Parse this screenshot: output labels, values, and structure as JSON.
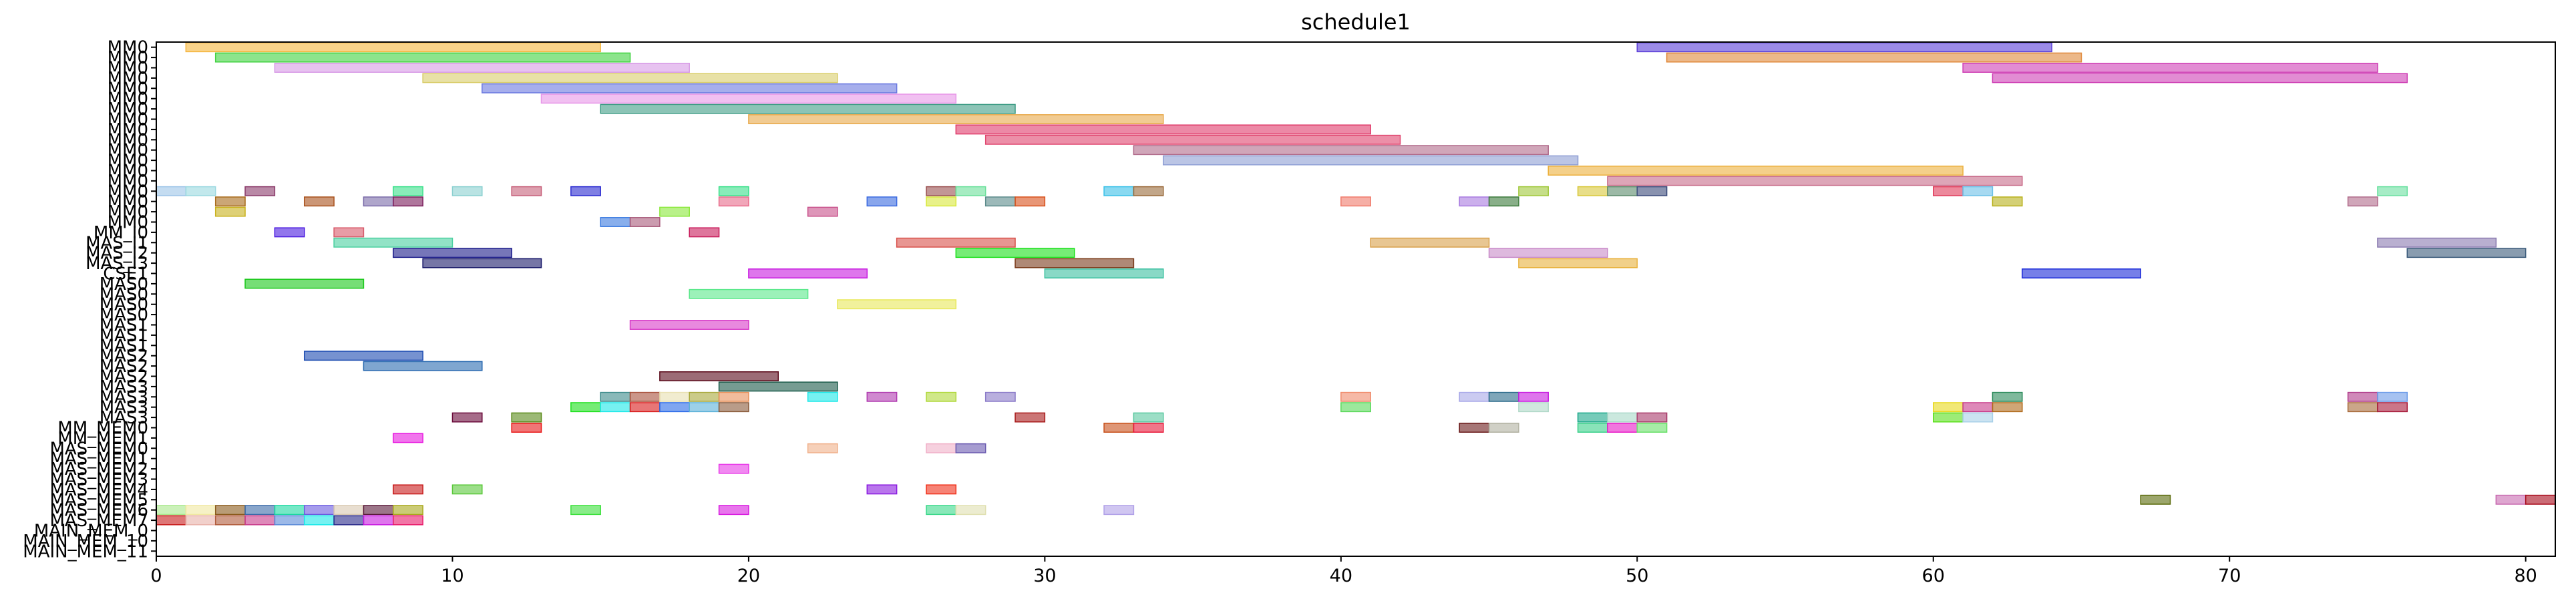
{
  "chart_data": {
    "type": "gantt",
    "title": "schedule1",
    "xlabel": "",
    "ylabel": "",
    "xlim": [
      0,
      81
    ],
    "xticks": [
      0,
      10,
      20,
      30,
      40,
      50,
      60,
      70,
      80
    ],
    "grid": false,
    "legend": "none",
    "rows": [
      "MM0",
      "MM0",
      "MM0",
      "MM0",
      "MM0",
      "MM0",
      "MM0",
      "MM0",
      "MM0",
      "MM0",
      "MM0",
      "MM0",
      "MM0",
      "MM0",
      "MM0",
      "MM0",
      "MM0",
      "MM0",
      "MM_I0",
      "MAS_I1",
      "MAS_I2",
      "MAS_I3",
      "CSE1",
      "MAS0",
      "MAS0",
      "MAS0",
      "MAS0",
      "MAS1",
      "MAS1",
      "MAS1",
      "MAS2",
      "MAS2",
      "MAS2",
      "MAS3",
      "MAS3",
      "MAS3",
      "MAS3",
      "MM_MEM0",
      "MM_MEM1",
      "MAS_MEM0",
      "MAS_MEM1",
      "MAS_MEM2",
      "MAS_MEM3",
      "MAS_MEM4",
      "MAS_MEM5",
      "MAS_MEM6",
      "MAS_MEM7",
      "MAIN_MEM_0",
      "MAIN_MEM_10",
      "MAIN_MEM_11"
    ],
    "tasks": [
      {
        "row": 0,
        "start": 1,
        "end": 15,
        "color": "#f5b53c"
      },
      {
        "row": 0,
        "start": 50,
        "end": 64,
        "color": "#5a3ed8"
      },
      {
        "row": 1,
        "start": 2,
        "end": 16,
        "color": "#3fd23f"
      },
      {
        "row": 1,
        "start": 51,
        "end": 65,
        "color": "#e0883a"
      },
      {
        "row": 2,
        "start": 4,
        "end": 18,
        "color": "#d79ae6"
      },
      {
        "row": 2,
        "start": 61,
        "end": 75,
        "color": "#cf3fb5"
      },
      {
        "row": 3,
        "start": 9,
        "end": 23,
        "color": "#d9cd6a"
      },
      {
        "row": 3,
        "start": 62,
        "end": 76,
        "color": "#cf3fb5"
      },
      {
        "row": 4,
        "start": 11,
        "end": 25,
        "color": "#6a78e0"
      },
      {
        "row": 5,
        "start": 13,
        "end": 27,
        "color": "#e796e8"
      },
      {
        "row": 6,
        "start": 15,
        "end": 29,
        "color": "#3f9c85"
      },
      {
        "row": 7,
        "start": 20,
        "end": 34,
        "color": "#e8a84a"
      },
      {
        "row": 8,
        "start": 27,
        "end": 41,
        "color": "#e03a6a"
      },
      {
        "row": 9,
        "start": 28,
        "end": 42,
        "color": "#e0456e"
      },
      {
        "row": 10,
        "start": 33,
        "end": 47,
        "color": "#b06a8a"
      },
      {
        "row": 11,
        "start": 34,
        "end": 48,
        "color": "#8e9ed4"
      },
      {
        "row": 12,
        "start": 47,
        "end": 61,
        "color": "#ecb03c"
      },
      {
        "row": 13,
        "start": 49,
        "end": 63,
        "color": "#c76a88"
      },
      {
        "row": 14,
        "start": 0,
        "end": 1,
        "color": "#9cc4e8"
      },
      {
        "row": 14,
        "start": 1,
        "end": 2,
        "color": "#9ad8e0"
      },
      {
        "row": 14,
        "start": 3,
        "end": 4,
        "color": "#8a3a6a"
      },
      {
        "row": 14,
        "start": 8,
        "end": 9,
        "color": "#3ae08a"
      },
      {
        "row": 14,
        "start": 10,
        "end": 11,
        "color": "#8ad0d0"
      },
      {
        "row": 14,
        "start": 12,
        "end": 13,
        "color": "#c7607a"
      },
      {
        "row": 14,
        "start": 14,
        "end": 15,
        "color": "#2a2ad0"
      },
      {
        "row": 14,
        "start": 19,
        "end": 20,
        "color": "#3ae08a"
      },
      {
        "row": 14,
        "start": 26,
        "end": 27,
        "color": "#9a5050"
      },
      {
        "row": 14,
        "start": 27,
        "end": 28,
        "color": "#6ae09a"
      },
      {
        "row": 14,
        "start": 32,
        "end": 33,
        "color": "#3ac0e8"
      },
      {
        "row": 14,
        "start": 33,
        "end": 34,
        "color": "#9a6a3a"
      },
      {
        "row": 14,
        "start": 46,
        "end": 47,
        "color": "#a0c83a"
      },
      {
        "row": 14,
        "start": 48,
        "end": 49,
        "color": "#d8c83a"
      },
      {
        "row": 14,
        "start": 49,
        "end": 50,
        "color": "#5a8a6a"
      },
      {
        "row": 14,
        "start": 50,
        "end": 51,
        "color": "#3a4a7a"
      },
      {
        "row": 14,
        "start": 60,
        "end": 61,
        "color": "#e03a5a"
      },
      {
        "row": 14,
        "start": 61,
        "end": 62,
        "color": "#6ac0e8"
      },
      {
        "row": 14,
        "start": 75,
        "end": 76,
        "color": "#6ae0a0"
      },
      {
        "row": 15,
        "start": 2,
        "end": 3,
        "color": "#a86a1a"
      },
      {
        "row": 15,
        "start": 5,
        "end": 6,
        "color": "#a8501a"
      },
      {
        "row": 15,
        "start": 7,
        "end": 8,
        "color": "#7a6aa8"
      },
      {
        "row": 15,
        "start": 8,
        "end": 9,
        "color": "#7a1a5a"
      },
      {
        "row": 15,
        "start": 19,
        "end": 20,
        "color": "#e86a8a"
      },
      {
        "row": 15,
        "start": 24,
        "end": 25,
        "color": "#3a6ae0"
      },
      {
        "row": 15,
        "start": 26,
        "end": 27,
        "color": "#d8e83a"
      },
      {
        "row": 15,
        "start": 28,
        "end": 29,
        "color": "#5a8a8a"
      },
      {
        "row": 15,
        "start": 29,
        "end": 30,
        "color": "#d8501a"
      },
      {
        "row": 15,
        "start": 40,
        "end": 41,
        "color": "#f07a6a"
      },
      {
        "row": 15,
        "start": 44,
        "end": 45,
        "color": "#a87ae0"
      },
      {
        "row": 15,
        "start": 45,
        "end": 46,
        "color": "#3a7a3a"
      },
      {
        "row": 15,
        "start": 62,
        "end": 63,
        "color": "#b8b01a"
      },
      {
        "row": 15,
        "start": 74,
        "end": 75,
        "color": "#b06a8a"
      },
      {
        "row": 16,
        "start": 2,
        "end": 3,
        "color": "#c8b01a"
      },
      {
        "row": 16,
        "start": 17,
        "end": 18,
        "color": "#8ae83a"
      },
      {
        "row": 16,
        "start": 22,
        "end": 23,
        "color": "#c8508a"
      },
      {
        "row": 17,
        "start": 15,
        "end": 16,
        "color": "#3a7ae0"
      },
      {
        "row": 18,
        "start": 4,
        "end": 5,
        "color": "#4a1ae0"
      },
      {
        "row": 18,
        "start": 6,
        "end": 7,
        "color": "#d85a6a"
      },
      {
        "row": 17,
        "start": 16,
        "end": 17,
        "color": "#a85a7a"
      },
      {
        "row": 18,
        "start": 18,
        "end": 19,
        "color": "#c81a5a"
      },
      {
        "row": 19,
        "start": 6,
        "end": 10,
        "color": "#4ad0a0"
      },
      {
        "row": 19,
        "start": 25,
        "end": 29,
        "color": "#d8504a"
      },
      {
        "row": 19,
        "start": 41,
        "end": 45,
        "color": "#d8a04a"
      },
      {
        "row": 19,
        "start": 75,
        "end": 79,
        "color": "#8a7ab0"
      },
      {
        "row": 20,
        "start": 8,
        "end": 12,
        "color": "#1a1a8a"
      },
      {
        "row": 20,
        "start": 27,
        "end": 31,
        "color": "#1ae01a"
      },
      {
        "row": 20,
        "start": 45,
        "end": 49,
        "color": "#c88ac8"
      },
      {
        "row": 20,
        "start": 76,
        "end": 80,
        "color": "#3a5a7a"
      },
      {
        "row": 21,
        "start": 9,
        "end": 13,
        "color": "#1a1a6a"
      },
      {
        "row": 21,
        "start": 29,
        "end": 33,
        "color": "#7a3a1a"
      },
      {
        "row": 21,
        "start": 46,
        "end": 50,
        "color": "#e8b03a"
      },
      {
        "row": 22,
        "start": 20,
        "end": 24,
        "color": "#c81ae0"
      },
      {
        "row": 22,
        "start": 30,
        "end": 34,
        "color": "#3ac0a0"
      },
      {
        "row": 22,
        "start": 63,
        "end": 67,
        "color": "#1a2ad8"
      },
      {
        "row": 23,
        "start": 3,
        "end": 7,
        "color": "#1ac81a"
      },
      {
        "row": 24,
        "start": 18,
        "end": 22,
        "color": "#5ae88a"
      },
      {
        "row": 25,
        "start": 23,
        "end": 27,
        "color": "#e8e85a"
      },
      {
        "row": 27,
        "start": 16,
        "end": 20,
        "color": "#d83ac8"
      },
      {
        "row": 30,
        "start": 5,
        "end": 9,
        "color": "#1a4ab0"
      },
      {
        "row": 31,
        "start": 7,
        "end": 11,
        "color": "#2a6ab0"
      },
      {
        "row": 32,
        "start": 17,
        "end": 21,
        "color": "#5a0a1a"
      },
      {
        "row": 33,
        "start": 19,
        "end": 23,
        "color": "#1a5a4a"
      },
      {
        "row": 34,
        "start": 15,
        "end": 16,
        "color": "#3a8a8a"
      },
      {
        "row": 34,
        "start": 16,
        "end": 17,
        "color": "#a8503a"
      },
      {
        "row": 34,
        "start": 17,
        "end": 18,
        "color": "#e8e0b0"
      },
      {
        "row": 34,
        "start": 18,
        "end": 19,
        "color": "#a8a83a"
      },
      {
        "row": 34,
        "start": 19,
        "end": 20,
        "color": "#e8905a"
      },
      {
        "row": 34,
        "start": 22,
        "end": 23,
        "color": "#1ae8e8"
      },
      {
        "row": 34,
        "start": 24,
        "end": 25,
        "color": "#b03ab0"
      },
      {
        "row": 34,
        "start": 26,
        "end": 27,
        "color": "#b0d83a"
      },
      {
        "row": 34,
        "start": 28,
        "end": 29,
        "color": "#8a7ac8"
      },
      {
        "row": 34,
        "start": 40,
        "end": 41,
        "color": "#f08a6a"
      },
      {
        "row": 34,
        "start": 44,
        "end": 45,
        "color": "#a8a8e8"
      },
      {
        "row": 34,
        "start": 45,
        "end": 46,
        "color": "#2a6a8a"
      },
      {
        "row": 34,
        "start": 46,
        "end": 47,
        "color": "#c81ae0"
      },
      {
        "row": 34,
        "start": 62,
        "end": 63,
        "color": "#2a8a5a"
      },
      {
        "row": 34,
        "start": 74,
        "end": 75,
        "color": "#b03a8a"
      },
      {
        "row": 34,
        "start": 75,
        "end": 76,
        "color": "#6a9ae8"
      },
      {
        "row": 35,
        "start": 14,
        "end": 15,
        "color": "#1ae01a"
      },
      {
        "row": 35,
        "start": 15,
        "end": 16,
        "color": "#1ae8e8"
      },
      {
        "row": 35,
        "start": 16,
        "end": 17,
        "color": "#d81a1a"
      },
      {
        "row": 35,
        "start": 17,
        "end": 18,
        "color": "#2a6ae8"
      },
      {
        "row": 35,
        "start": 18,
        "end": 19,
        "color": "#5ab0d8"
      },
      {
        "row": 35,
        "start": 19,
        "end": 20,
        "color": "#8a5a3a"
      },
      {
        "row": 35,
        "start": 40,
        "end": 41,
        "color": "#5ad85a"
      },
      {
        "row": 35,
        "start": 46,
        "end": 47,
        "color": "#b0d8c8"
      },
      {
        "row": 35,
        "start": 60,
        "end": 61,
        "color": "#e8d81a"
      },
      {
        "row": 35,
        "start": 61,
        "end": 62,
        "color": "#c83a8a"
      },
      {
        "row": 35,
        "start": 62,
        "end": 63,
        "color": "#b06a1a"
      },
      {
        "row": 35,
        "start": 74,
        "end": 75,
        "color": "#a86a3a"
      },
      {
        "row": 35,
        "start": 75,
        "end": 76,
        "color": "#a81a3a"
      },
      {
        "row": 36,
        "start": 10,
        "end": 11,
        "color": "#6a0a3a"
      },
      {
        "row": 36,
        "start": 12,
        "end": 13,
        "color": "#5a8a1a"
      },
      {
        "row": 36,
        "start": 29,
        "end": 30,
        "color": "#a81a1a"
      },
      {
        "row": 36,
        "start": 33,
        "end": 34,
        "color": "#5ac8a0"
      },
      {
        "row": 36,
        "start": 48,
        "end": 49,
        "color": "#1aa88a"
      },
      {
        "row": 36,
        "start": 49,
        "end": 50,
        "color": "#a8d8c8"
      },
      {
        "row": 36,
        "start": 50,
        "end": 51,
        "color": "#a83a6a"
      },
      {
        "row": 36,
        "start": 60,
        "end": 61,
        "color": "#5ae01a"
      },
      {
        "row": 36,
        "start": 61,
        "end": 62,
        "color": "#a8d0e8"
      },
      {
        "row": 37,
        "start": 12,
        "end": 13,
        "color": "#e81a1a"
      },
      {
        "row": 37,
        "start": 32,
        "end": 33,
        "color": "#c8501a"
      },
      {
        "row": 37,
        "start": 33,
        "end": 34,
        "color": "#e81a3a"
      },
      {
        "row": 37,
        "start": 44,
        "end": 45,
        "color": "#6a1a1a"
      },
      {
        "row": 37,
        "start": 45,
        "end": 46,
        "color": "#b0b0a0"
      },
      {
        "row": 37,
        "start": 48,
        "end": 49,
        "color": "#3ad08a"
      },
      {
        "row": 37,
        "start": 49,
        "end": 50,
        "color": "#e81ac8"
      },
      {
        "row": 37,
        "start": 50,
        "end": 51,
        "color": "#6ae06a"
      },
      {
        "row": 38,
        "start": 8,
        "end": 9,
        "color": "#e81ae0"
      },
      {
        "row": 39,
        "start": 22,
        "end": 23,
        "color": "#f0b08a"
      },
      {
        "row": 39,
        "start": 26,
        "end": 27,
        "color": "#f0b0c8"
      },
      {
        "row": 39,
        "start": 27,
        "end": 28,
        "color": "#6a5ab0"
      },
      {
        "row": 41,
        "start": 19,
        "end": 20,
        "color": "#e83ae8"
      },
      {
        "row": 43,
        "start": 8,
        "end": 9,
        "color": "#c81a1a"
      },
      {
        "row": 43,
        "start": 10,
        "end": 11,
        "color": "#5ac83a"
      },
      {
        "row": 43,
        "start": 24,
        "end": 25,
        "color": "#8a1ae0"
      },
      {
        "row": 43,
        "start": 26,
        "end": 27,
        "color": "#f0301a"
      },
      {
        "row": 44,
        "start": 67,
        "end": 68,
        "color": "#5a6a0a"
      },
      {
        "row": 44,
        "start": 79,
        "end": 80,
        "color": "#c86ab0"
      },
      {
        "row": 44,
        "start": 80,
        "end": 81,
        "color": "#a80a1a"
      },
      {
        "row": 45,
        "start": 0,
        "end": 1,
        "color": "#a8e88a"
      },
      {
        "row": 45,
        "start": 1,
        "end": 2,
        "color": "#f0e8a0"
      },
      {
        "row": 45,
        "start": 2,
        "end": 3,
        "color": "#8a5a1a"
      },
      {
        "row": 45,
        "start": 3,
        "end": 4,
        "color": "#3a6aa8"
      },
      {
        "row": 45,
        "start": 4,
        "end": 5,
        "color": "#1ad8a0"
      },
      {
        "row": 45,
        "start": 5,
        "end": 6,
        "color": "#6a5ae0"
      },
      {
        "row": 45,
        "start": 6,
        "end": 7,
        "color": "#d8c8b0"
      },
      {
        "row": 45,
        "start": 7,
        "end": 8,
        "color": "#5a1a3a"
      },
      {
        "row": 45,
        "start": 8,
        "end": 9,
        "color": "#a8a81a"
      },
      {
        "row": 45,
        "start": 14,
        "end": 15,
        "color": "#3ae03a"
      },
      {
        "row": 45,
        "start": 19,
        "end": 20,
        "color": "#d81ae0"
      },
      {
        "row": 45,
        "start": 26,
        "end": 27,
        "color": "#3ad88a"
      },
      {
        "row": 45,
        "start": 27,
        "end": 28,
        "color": "#e0e0b0"
      },
      {
        "row": 45,
        "start": 32,
        "end": 33,
        "color": "#b0a0e8"
      },
      {
        "row": 46,
        "start": 0,
        "end": 1,
        "color": "#c81a1a"
      },
      {
        "row": 46,
        "start": 1,
        "end": 2,
        "color": "#e8b0a8"
      },
      {
        "row": 46,
        "start": 2,
        "end": 3,
        "color": "#b05a3a"
      },
      {
        "row": 46,
        "start": 3,
        "end": 4,
        "color": "#c83a8a"
      },
      {
        "row": 46,
        "start": 4,
        "end": 5,
        "color": "#5a8ad8"
      },
      {
        "row": 46,
        "start": 5,
        "end": 6,
        "color": "#1ae8e8"
      },
      {
        "row": 46,
        "start": 6,
        "end": 7,
        "color": "#2a2a8a"
      },
      {
        "row": 46,
        "start": 7,
        "end": 8,
        "color": "#c81ae0"
      },
      {
        "row": 46,
        "start": 8,
        "end": 9,
        "color": "#e81a6a"
      }
    ]
  }
}
